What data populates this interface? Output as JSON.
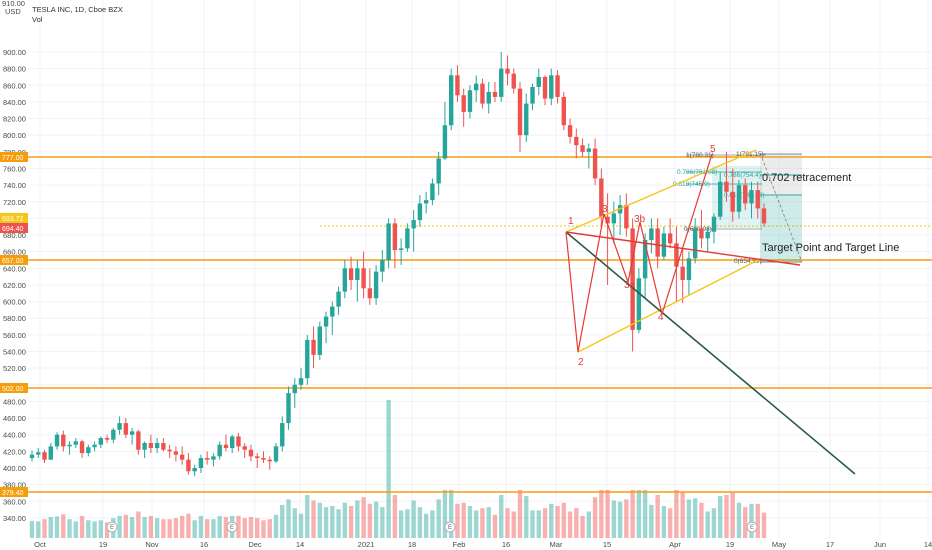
{
  "header": {
    "symbol_line": "TESLA INC, 1D, Cboe BZX",
    "volume_label": "Vol",
    "currency": "USD"
  },
  "price_tags": {
    "current": "694.40",
    "h777": "777.00",
    "h657": "657.00",
    "h693": "693.72",
    "h502": "502.00",
    "h379": "379.40",
    "top": "910.00"
  },
  "annotations": {
    "retracement": "0.702 retracement",
    "target": "Target Point and Target Line"
  },
  "wave_labels": [
    "1",
    "2",
    "3",
    "3a",
    "3b",
    "4",
    "5"
  ],
  "fib_labels": {
    "f1": "1(780.31)",
    "f786": "0.786(761.08)",
    "f618": "0.618(745.9)",
    "f0": "0(690.03)",
    "g1": "1(781.15)",
    "g786": "0.786(754.4)",
    "g618": "0.618(732.79)",
    "g0": "0(654.59)"
  },
  "earnings_marker": "E",
  "colors": {
    "bull": "#26a69a",
    "bear": "#ef5350",
    "horizontal": "#f59e0b",
    "channel": "#f5c518",
    "trend_dark": "#2e5a47",
    "target_line": "#e53935"
  },
  "chart_data": {
    "type": "candlestick",
    "title": "TESLA INC, 1D, Cboe BZX",
    "ylabel": "USD",
    "ylim": [
      320,
      910
    ],
    "y_ticks": [
      340,
      360,
      380,
      400,
      420,
      440,
      460,
      480,
      500,
      520,
      540,
      560,
      580,
      600,
      620,
      640,
      660,
      680,
      700,
      720,
      740,
      760,
      780,
      800,
      820,
      840,
      860,
      880,
      900
    ],
    "x_ticks": [
      "Oct",
      "19",
      "Nov",
      "16",
      "Dec",
      "14",
      "2021",
      "18",
      "Feb",
      "16",
      "Mar",
      "15",
      "Apr",
      "19",
      "May",
      "17",
      "Jun",
      "14"
    ],
    "horizontal_levels": [
      777,
      657,
      502,
      379.4
    ],
    "current_price": 694.4,
    "series": [
      {
        "name": "OHLC",
        "values": [
          [
            412,
            421,
            408,
            416
          ],
          [
            416,
            424,
            412,
            419
          ],
          [
            419,
            422,
            406,
            410
          ],
          [
            410,
            430,
            410,
            426
          ],
          [
            426,
            443,
            422,
            440
          ],
          [
            440,
            445,
            420,
            426
          ],
          [
            426,
            432,
            416,
            428
          ],
          [
            428,
            436,
            424,
            432
          ],
          [
            432,
            434,
            412,
            418
          ],
          [
            418,
            428,
            414,
            425
          ],
          [
            425,
            432,
            420,
            428
          ],
          [
            428,
            438,
            424,
            436
          ],
          [
            436,
            440,
            430,
            434
          ],
          [
            434,
            448,
            430,
            446
          ],
          [
            446,
            462,
            440,
            454
          ],
          [
            454,
            460,
            436,
            440
          ],
          [
            440,
            448,
            428,
            444
          ],
          [
            444,
            446,
            416,
            422
          ],
          [
            422,
            432,
            412,
            430
          ],
          [
            430,
            440,
            418,
            424
          ],
          [
            424,
            436,
            418,
            430
          ],
          [
            430,
            436,
            420,
            422
          ],
          [
            422,
            428,
            412,
            420
          ],
          [
            420,
            426,
            408,
            416
          ],
          [
            416,
            426,
            404,
            410
          ],
          [
            410,
            418,
            392,
            396
          ],
          [
            396,
            404,
            390,
            400
          ],
          [
            400,
            416,
            394,
            412
          ],
          [
            412,
            420,
            404,
            410
          ],
          [
            410,
            418,
            402,
            414
          ],
          [
            414,
            432,
            410,
            428
          ],
          [
            428,
            440,
            420,
            424
          ],
          [
            424,
            440,
            418,
            438
          ],
          [
            438,
            442,
            420,
            426
          ],
          [
            426,
            430,
            412,
            422
          ],
          [
            422,
            428,
            408,
            414
          ],
          [
            414,
            418,
            400,
            412
          ],
          [
            412,
            420,
            406,
            410
          ],
          [
            410,
            414,
            398,
            408
          ],
          [
            408,
            430,
            406,
            426
          ],
          [
            426,
            462,
            420,
            454
          ],
          [
            454,
            498,
            446,
            490
          ],
          [
            490,
            508,
            472,
            500
          ],
          [
            500,
            520,
            494,
            508
          ],
          [
            508,
            560,
            500,
            554
          ],
          [
            554,
            570,
            520,
            536
          ],
          [
            536,
            576,
            530,
            570
          ],
          [
            570,
            588,
            550,
            582
          ],
          [
            582,
            600,
            560,
            594
          ],
          [
            594,
            618,
            584,
            612
          ],
          [
            612,
            650,
            604,
            640
          ],
          [
            640,
            654,
            614,
            626
          ],
          [
            626,
            650,
            600,
            640
          ],
          [
            640,
            660,
            604,
            616
          ],
          [
            616,
            640,
            596,
            604
          ],
          [
            604,
            644,
            596,
            636
          ],
          [
            636,
            662,
            624,
            650
          ],
          [
            650,
            700,
            640,
            694
          ],
          [
            694,
            700,
            640,
            662
          ],
          [
            662,
            676,
            644,
            664
          ],
          [
            664,
            694,
            660,
            688
          ],
          [
            688,
            710,
            660,
            698
          ],
          [
            698,
            728,
            690,
            718
          ],
          [
            718,
            732,
            706,
            722
          ],
          [
            722,
            748,
            716,
            742
          ],
          [
            742,
            780,
            728,
            772
          ],
          [
            772,
            840,
            770,
            812
          ],
          [
            812,
            880,
            806,
            872
          ],
          [
            872,
            884,
            840,
            848
          ],
          [
            848,
            856,
            810,
            828
          ],
          [
            828,
            860,
            820,
            854
          ],
          [
            854,
            872,
            840,
            862
          ],
          [
            862,
            868,
            832,
            838
          ],
          [
            838,
            864,
            826,
            852
          ],
          [
            852,
            864,
            840,
            846
          ],
          [
            846,
            900,
            840,
            880
          ],
          [
            880,
            896,
            860,
            874
          ],
          [
            874,
            880,
            850,
            856
          ],
          [
            856,
            864,
            780,
            800
          ],
          [
            800,
            850,
            792,
            838
          ],
          [
            838,
            862,
            830,
            858
          ],
          [
            858,
            880,
            848,
            870
          ],
          [
            870,
            872,
            836,
            844
          ],
          [
            844,
            880,
            836,
            872
          ],
          [
            872,
            878,
            838,
            846
          ],
          [
            846,
            852,
            806,
            812
          ],
          [
            812,
            820,
            790,
            798
          ],
          [
            798,
            808,
            772,
            788
          ],
          [
            788,
            796,
            774,
            780
          ],
          [
            780,
            790,
            760,
            784
          ],
          [
            784,
            796,
            740,
            748
          ],
          [
            748,
            760,
            690,
            702
          ],
          [
            702,
            730,
            620,
            694
          ],
          [
            694,
            720,
            670,
            706
          ],
          [
            706,
            728,
            680,
            716
          ],
          [
            716,
            730,
            678,
            688
          ],
          [
            688,
            700,
            540,
            566
          ],
          [
            566,
            640,
            562,
            628
          ],
          [
            628,
            682,
            604,
            674
          ],
          [
            674,
            700,
            658,
            688
          ],
          [
            688,
            700,
            640,
            654
          ],
          [
            654,
            690,
            650,
            682
          ],
          [
            682,
            700,
            664,
            670
          ],
          [
            670,
            690,
            600,
            642
          ],
          [
            642,
            664,
            598,
            626
          ],
          [
            626,
            660,
            608,
            652
          ],
          [
            652,
            700,
            646,
            688
          ],
          [
            688,
            710,
            664,
            676
          ],
          [
            676,
            690,
            660,
            684
          ],
          [
            684,
            706,
            670,
            702
          ],
          [
            702,
            756,
            698,
            744
          ],
          [
            744,
            780,
            720,
            732
          ],
          [
            732,
            760,
            696,
            708
          ],
          [
            708,
            746,
            700,
            740
          ],
          [
            740,
            748,
            710,
            718
          ],
          [
            718,
            744,
            700,
            734
          ],
          [
            734,
            744,
            700,
            712
          ],
          [
            712,
            718,
            690,
            694
          ]
        ]
      }
    ]
  }
}
